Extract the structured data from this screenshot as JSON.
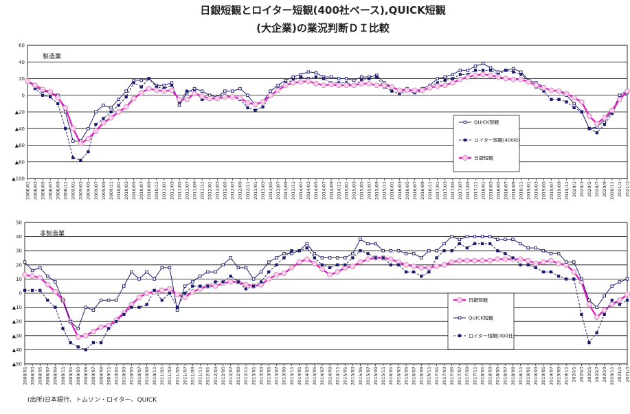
{
  "title": "日銀短観とロイター短観(400社ベース),QUICK短観",
  "subtitle": "(大企業)の業況判断ＤＩ比較",
  "source": "(出所)日本銀行、トムソン・ロイター、QUICK",
  "chart_data": [
    {
      "type": "line",
      "label": "製造業",
      "grid": true,
      "categories": [
        "2008/01",
        "2008/03",
        "2008/05",
        "2008/07",
        "2008/09",
        "2008/11",
        "2009/01",
        "2009/03",
        "2009/05",
        "2009/07",
        "2009/09",
        "2009/11",
        "2010/01",
        "2010/03",
        "2010/05",
        "2010/07",
        "2010/09",
        "2010/11",
        "2011/01",
        "2011/03",
        "2011/05",
        "2011/07",
        "2011/09",
        "2011/11",
        "2012/01",
        "2012/03",
        "2012/05",
        "2012/07",
        "2012/09",
        "2012/11",
        "2013/01",
        "2013/03",
        "2013/05",
        "2013/07",
        "2013/09",
        "2013/11",
        "2014/01",
        "2014/03",
        "2014/05",
        "2014/07",
        "2014/09",
        "2014/11",
        "2015/01",
        "2015/03",
        "2015/05",
        "2015/07",
        "2015/09",
        "2015/11",
        "2016/01",
        "2016/03",
        "2016/05",
        "2016/07",
        "2016/09",
        "2016/11",
        "2017/01",
        "2017/03",
        "2017/05",
        "2017/07",
        "2017/09",
        "2017/11",
        "2018/01",
        "2018/03",
        "2018/05",
        "2018/07",
        "2018/09",
        "2018/11",
        "2019/01",
        "2019/03",
        "2019/05",
        "2019/07",
        "2019/09",
        "2019/11",
        "2020/1",
        "2020/3",
        "2020/5",
        "2020/7",
        "2020/9",
        "2020/11",
        "2021/1",
        "2021/3"
      ],
      "ylim": [
        -100,
        60
      ],
      "yticks": [
        {
          "value": -100,
          "label": "▲100"
        },
        {
          "value": -80,
          "label": "▲80"
        },
        {
          "value": -60,
          "label": "▲60"
        },
        {
          "value": -40,
          "label": "▲40"
        },
        {
          "value": -20,
          "label": "▲20"
        },
        0,
        20,
        40,
        60
      ],
      "series": [
        {
          "name": "QUICK短観",
          "color": "#1b1b6b",
          "marker": "open-square",
          "style": "solid",
          "values": [
            18,
            10,
            5,
            3,
            0,
            -20,
            -55,
            -55,
            -40,
            -20,
            -12,
            -15,
            -5,
            5,
            18,
            18,
            20,
            12,
            12,
            15,
            -12,
            3,
            8,
            5,
            0,
            -2,
            5,
            5,
            8,
            0,
            -12,
            -8,
            5,
            12,
            18,
            22,
            25,
            28,
            27,
            22,
            22,
            20,
            20,
            18,
            22,
            22,
            24,
            15,
            10,
            6,
            8,
            5,
            8,
            12,
            20,
            22,
            25,
            30,
            30,
            35,
            38,
            33,
            28,
            30,
            32,
            28,
            18,
            15,
            10,
            5,
            5,
            0,
            -10,
            -20,
            -40,
            -38,
            -30,
            -20,
            0,
            6
          ]
        },
        {
          "name": "ロイター短観(400社)",
          "color": "#1b1b6b",
          "marker": "filled-square",
          "style": "dashed",
          "values": [
            18,
            8,
            0,
            -2,
            -10,
            -40,
            -75,
            -78,
            -68,
            -35,
            -28,
            -20,
            -12,
            -2,
            15,
            10,
            20,
            10,
            8,
            12,
            -8,
            5,
            5,
            -5,
            -5,
            -2,
            0,
            -2,
            -5,
            -15,
            -18,
            -14,
            0,
            8,
            15,
            18,
            22,
            20,
            22,
            20,
            15,
            15,
            15,
            12,
            18,
            20,
            22,
            10,
            5,
            2,
            5,
            3,
            5,
            10,
            15,
            18,
            20,
            25,
            25,
            30,
            30,
            30,
            25,
            30,
            28,
            25,
            18,
            10,
            5,
            -5,
            -5,
            -8,
            -15,
            -20,
            -40,
            -45,
            -35,
            -22,
            -5,
            3
          ]
        },
        {
          "name": "日銀短観",
          "color": "#e020c0",
          "marker": "open-circle",
          "style": "thick",
          "values": [
            17,
            12,
            7,
            4,
            -3,
            -15,
            -40,
            -58,
            -52,
            -43,
            -33,
            -27,
            -20,
            -14,
            -4,
            3,
            8,
            6,
            5,
            6,
            -5,
            -5,
            2,
            -1,
            -4,
            -4,
            -2,
            -2,
            -3,
            -9,
            -11,
            -8,
            0,
            6,
            12,
            15,
            16,
            17,
            14,
            12,
            13,
            12,
            12,
            12,
            14,
            14,
            12,
            12,
            10,
            6,
            6,
            6,
            6,
            9,
            11,
            12,
            15,
            19,
            22,
            24,
            25,
            24,
            22,
            20,
            19,
            19,
            16,
            12,
            9,
            6,
            5,
            2,
            -3,
            -8,
            -25,
            -34,
            -27,
            -18,
            -5,
            5
          ]
        }
      ]
    },
    {
      "type": "line",
      "label": "非製造業",
      "grid": true,
      "categories": [
        "2008/01",
        "2008/03",
        "2008/05",
        "2008/07",
        "2008/09",
        "2008/11",
        "2009/01",
        "2009/03",
        "2009/05",
        "2009/07",
        "2009/09",
        "2009/11",
        "2010/01",
        "2010/03",
        "2010/05",
        "2010/07",
        "2010/09",
        "2010/11",
        "2011/01",
        "2011/03",
        "2011/05",
        "2011/07",
        "2011/09",
        "2011/11",
        "2012/01",
        "2012/03",
        "2012/05",
        "2012/07",
        "2012/09",
        "2012/11",
        "2013/01",
        "2013/03",
        "2013/05",
        "2013/07",
        "2013/09",
        "2013/11",
        "2014/01",
        "2014/03",
        "2014/05",
        "2014/07",
        "2014/09",
        "2014/11",
        "2015/01",
        "2015/03",
        "2015/05",
        "2015/07",
        "2015/09",
        "2015/11",
        "2016/01",
        "2016/03",
        "2016/05",
        "2016/07",
        "2016/09",
        "2016/11",
        "2017/01",
        "2017/03",
        "2017/05",
        "2017/07",
        "2017/09",
        "2017/11",
        "2018/01",
        "2018/03",
        "2018/05",
        "2018/07",
        "2018/09",
        "2018/11",
        "2019/01",
        "2019/03",
        "2019/05",
        "2019/07",
        "2019/09",
        "2019/11",
        "2020/1",
        "2020/3",
        "2020/5",
        "2020/7",
        "2020/9",
        "2020/11",
        "2021/1",
        "2021/3"
      ],
      "ylim": [
        -50,
        50
      ],
      "yticks": [
        {
          "value": -50,
          "label": "▲50"
        },
        {
          "value": -40,
          "label": "▲40"
        },
        {
          "value": -30,
          "label": "▲30"
        },
        {
          "value": -20,
          "label": "▲20"
        },
        {
          "value": -10,
          "label": "▲10"
        },
        0,
        10,
        20,
        30,
        40,
        50
      ],
      "series": [
        {
          "name": "日銀短観",
          "color": "#e020c0",
          "marker": "open-circle",
          "style": "thick",
          "values": [
            13,
            12,
            11,
            6,
            1,
            -5,
            -20,
            -31,
            -30,
            -27,
            -24,
            -23,
            -19,
            -14,
            -8,
            -3,
            0,
            1,
            2,
            3,
            -1,
            -3,
            1,
            3,
            5,
            5,
            7,
            8,
            8,
            6,
            5,
            6,
            10,
            13,
            14,
            18,
            22,
            24,
            21,
            17,
            13,
            15,
            18,
            19,
            22,
            24,
            25,
            25,
            24,
            22,
            20,
            19,
            18,
            18,
            19,
            20,
            22,
            23,
            23,
            23,
            23,
            23,
            24,
            24,
            24,
            24,
            23,
            21,
            22,
            23,
            21,
            20,
            15,
            8,
            -8,
            -17,
            -12,
            -8,
            -5,
            -1
          ]
        },
        {
          "name": "QUICK短観",
          "color": "#1b1b6b",
          "marker": "open-square",
          "style": "solid",
          "values": [
            22,
            16,
            18,
            12,
            8,
            -5,
            -20,
            -25,
            -10,
            -12,
            -5,
            -5,
            -5,
            5,
            15,
            10,
            15,
            10,
            18,
            18,
            -12,
            5,
            8,
            12,
            15,
            15,
            20,
            25,
            18,
            18,
            10,
            15,
            22,
            25,
            28,
            28,
            30,
            35,
            28,
            25,
            25,
            25,
            25,
            28,
            38,
            35,
            35,
            30,
            30,
            30,
            28,
            28,
            25,
            30,
            30,
            35,
            40,
            38,
            40,
            40,
            40,
            40,
            38,
            38,
            38,
            35,
            32,
            32,
            30,
            28,
            28,
            22,
            22,
            10,
            -5,
            -10,
            -2,
            5,
            8,
            10
          ]
        },
        {
          "name": "ロイター短観(400社)",
          "color": "#1b1b6b",
          "marker": "filled-square",
          "style": "dashed",
          "values": [
            2,
            2,
            2,
            -5,
            -10,
            -25,
            -35,
            -38,
            -40,
            -35,
            -35,
            -25,
            -20,
            -15,
            -10,
            -10,
            -8,
            2,
            -5,
            0,
            -10,
            0,
            5,
            5,
            5,
            8,
            8,
            12,
            8,
            3,
            5,
            8,
            15,
            20,
            25,
            30,
            30,
            32,
            25,
            20,
            18,
            20,
            20,
            25,
            30,
            28,
            25,
            25,
            20,
            20,
            15,
            15,
            12,
            15,
            25,
            30,
            30,
            35,
            32,
            35,
            35,
            35,
            30,
            28,
            25,
            20,
            20,
            18,
            15,
            15,
            12,
            10,
            10,
            -15,
            -35,
            -28,
            -15,
            -5,
            -8,
            -5
          ]
        }
      ]
    }
  ]
}
